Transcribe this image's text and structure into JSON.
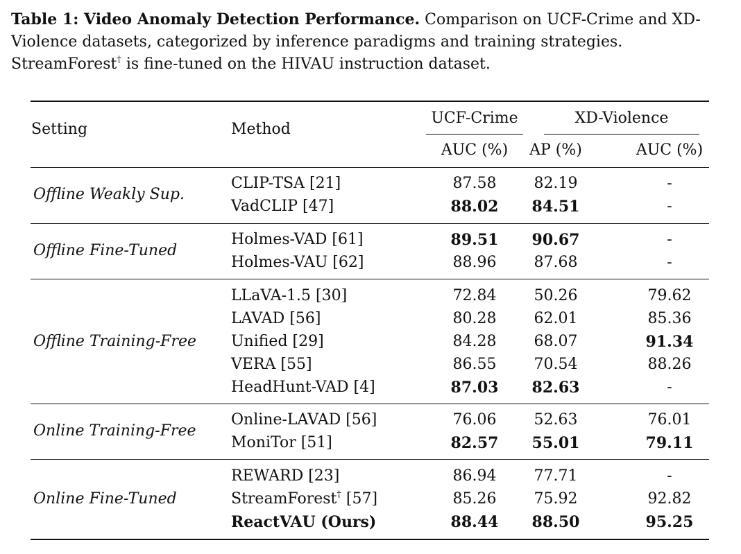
{
  "caption": {
    "label": "Table 1: Video Anomaly Detection Performance.",
    "text_line1": " Comparison on UCF-Crime and XD-Violence datasets, categorized by inference paradigms and training strategies.",
    "text_line3_a": "StreamForest",
    "dagger": "†",
    "text_line3_b": " is fine-tuned on the HIVAU instruction dataset."
  },
  "table": {
    "headers": {
      "setting": "Setting",
      "method": "Method",
      "group_ucf": "UCF-Crime",
      "group_xd": "XD-Violence",
      "ucf_auc": "AUC (%)",
      "xd_ap": "AP (%)",
      "xd_auc": "AUC (%)"
    },
    "groups": [
      {
        "setting": "Offline Weakly Sup.",
        "rows": [
          {
            "method": "CLIP-TSA [21]",
            "ucf_auc": "87.58",
            "xd_ap": "82.19",
            "xd_auc": "-"
          },
          {
            "method": "VadCLIP [47]",
            "ucf_auc": "88.02",
            "xd_ap": "84.51",
            "xd_auc": "-"
          }
        ]
      },
      {
        "setting": "Offline Fine-Tuned",
        "rows": [
          {
            "method": "Holmes-VAD [61]",
            "ucf_auc": "89.51",
            "xd_ap": "90.67",
            "xd_auc": "-"
          },
          {
            "method": "Holmes-VAU [62]",
            "ucf_auc": "88.96",
            "xd_ap": "87.68",
            "xd_auc": "-"
          }
        ]
      },
      {
        "setting": "Offline Training-Free",
        "rows": [
          {
            "method": "LLaVA-1.5 [30]",
            "ucf_auc": "72.84",
            "xd_ap": "50.26",
            "xd_auc": "79.62"
          },
          {
            "method": "LAVAD [56]",
            "ucf_auc": "80.28",
            "xd_ap": "62.01",
            "xd_auc": "85.36"
          },
          {
            "method": "Unified [29]",
            "ucf_auc": "84.28",
            "xd_ap": "68.07",
            "xd_auc": "91.34"
          },
          {
            "method": "VERA [55]",
            "ucf_auc": "86.55",
            "xd_ap": "70.54",
            "xd_auc": "88.26"
          },
          {
            "method": "HeadHunt-VAD [4]",
            "ucf_auc": "87.03",
            "xd_ap": "82.63",
            "xd_auc": "-"
          }
        ]
      },
      {
        "setting": "Online Training-Free",
        "rows": [
          {
            "method": "Online-LAVAD [56]",
            "ucf_auc": "76.06",
            "xd_ap": "52.63",
            "xd_auc": "76.01"
          },
          {
            "method": "MoniTor [51]",
            "ucf_auc": "82.57",
            "xd_ap": "55.01",
            "xd_auc": "79.11"
          }
        ]
      },
      {
        "setting": "Online Fine-Tuned",
        "rows": [
          {
            "method": "REWARD [23]",
            "ucf_auc": "86.94",
            "xd_ap": "77.71",
            "xd_auc": "-"
          },
          {
            "method": "StreamForest",
            "method_sup": "†",
            "method_suffix": " [57]",
            "ucf_auc": "85.26",
            "xd_ap": "75.92",
            "xd_auc": "92.82"
          },
          {
            "method": "ReactVAU (Ours)",
            "ucf_auc": "88.44",
            "xd_ap": "88.50",
            "xd_auc": "95.25"
          }
        ]
      }
    ]
  }
}
